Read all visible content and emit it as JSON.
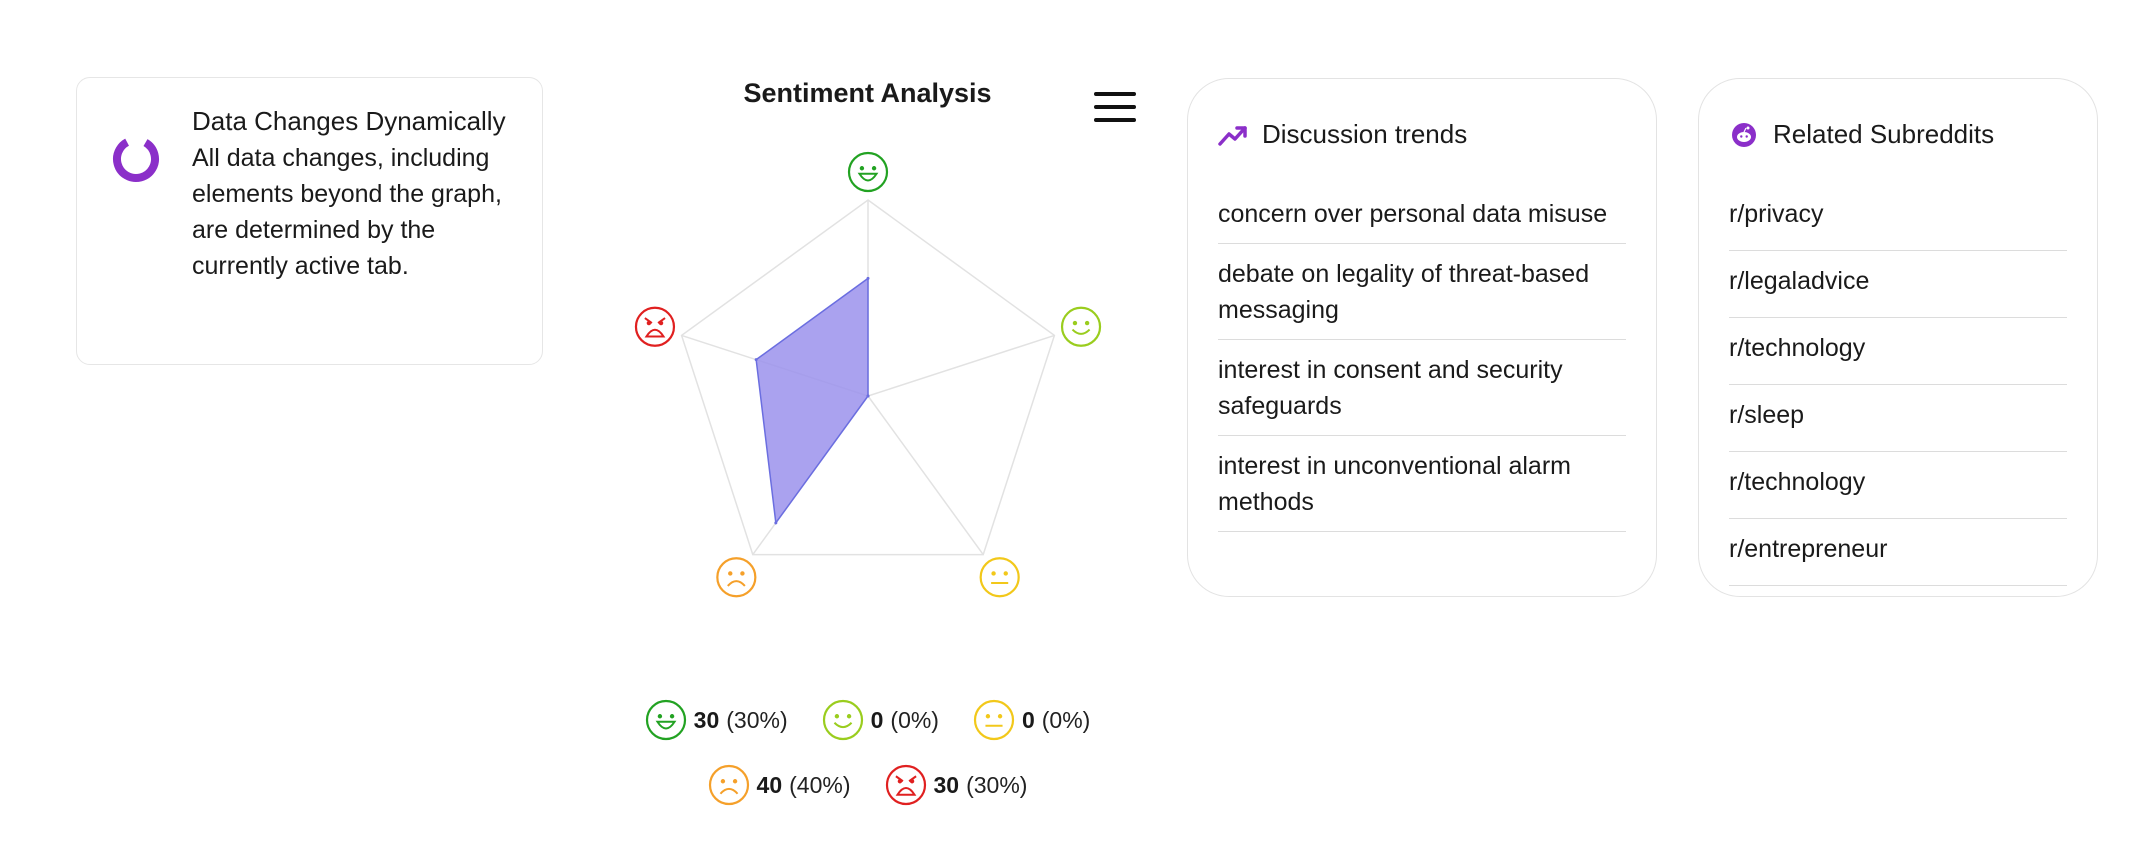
{
  "info": {
    "title": "Data Changes Dynamically",
    "description": "All data changes, including elements beyond the graph, are determined by the currently active tab.",
    "icon": "loading-ring-icon",
    "accent": "#8b2fc9"
  },
  "chart_data": {
    "type": "radar",
    "title": "Sentiment Analysis",
    "axes": [
      {
        "key": "very_positive",
        "icon": "grin-face-icon",
        "color": "#22a222"
      },
      {
        "key": "positive",
        "icon": "smile-face-icon",
        "color": "#9acd1e"
      },
      {
        "key": "neutral",
        "icon": "neutral-face-icon",
        "color": "#f2c81a"
      },
      {
        "key": "negative",
        "icon": "frown-face-icon",
        "color": "#f5a02a"
      },
      {
        "key": "very_negative",
        "icon": "angry-face-icon",
        "color": "#e02020"
      }
    ],
    "values": [
      30,
      0,
      0,
      40,
      30
    ],
    "percents": [
      "(30%)",
      "(0%)",
      "(0%)",
      "(40%)",
      "(30%)"
    ],
    "max": 50,
    "fill": "#9b92ec",
    "stroke": "#6b6ee0",
    "grid": true
  },
  "trends": {
    "title": "Discussion trends",
    "icon": "trending-up-icon",
    "items": [
      "concern over personal data misuse",
      "debate on legality of threat-based messaging",
      "interest in consent and security safeguards",
      "interest in unconventional alarm methods"
    ]
  },
  "subreddits": {
    "title": "Related Subreddits",
    "icon": "reddit-icon",
    "items": [
      "r/privacy",
      "r/legaladvice",
      "r/technology",
      "r/sleep",
      "r/technology",
      "r/entrepreneur"
    ]
  },
  "menu": {
    "icon": "hamburger-menu-icon"
  }
}
